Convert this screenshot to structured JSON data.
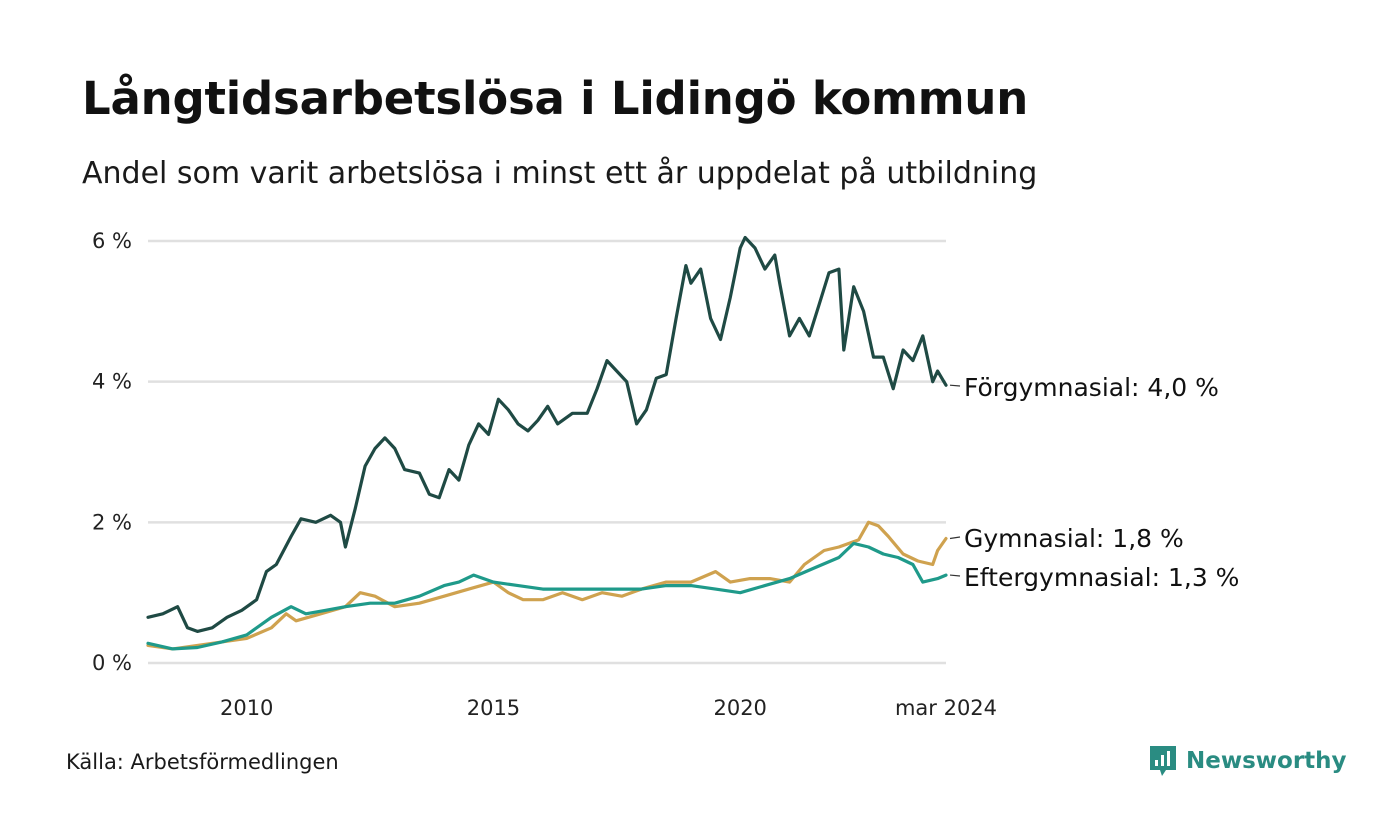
{
  "title": "Långtidsarbetslösa i Lidingö kommun",
  "subtitle": "Andel som varit arbetslösa i minst ett år uppdelat på utbildning",
  "source": "Källa: Arbetsförmedlingen",
  "brand": {
    "name": "Newsworthy",
    "color": "#2a8c82",
    "icon": "newsworthy-logo-icon"
  },
  "chart_data": {
    "type": "line",
    "title": "Långtidsarbetslösa i Lidingö kommun",
    "xlabel": "",
    "ylabel": "",
    "ylim": [
      0,
      6
    ],
    "xlim": [
      2008.0,
      2024.17
    ],
    "grid": "horizontal",
    "yticks": [
      {
        "value": 0,
        "label": "0 %"
      },
      {
        "value": 2,
        "label": "2 %"
      },
      {
        "value": 4,
        "label": "4 %"
      },
      {
        "value": 6,
        "label": "6 %"
      }
    ],
    "xticks": [
      {
        "value": 2010,
        "label": "2010"
      },
      {
        "value": 2015,
        "label": "2015"
      },
      {
        "value": 2020,
        "label": "2020"
      },
      {
        "value": 2024.17,
        "label": "mar 2024"
      }
    ],
    "series": [
      {
        "name": "Förgymnasial",
        "end_label": "Förgymnasial: 4,0 %",
        "color": "#1f4a44",
        "points": [
          [
            2008.0,
            0.65
          ],
          [
            2008.3,
            0.7
          ],
          [
            2008.6,
            0.8
          ],
          [
            2008.8,
            0.5
          ],
          [
            2009.0,
            0.45
          ],
          [
            2009.3,
            0.5
          ],
          [
            2009.6,
            0.65
          ],
          [
            2009.9,
            0.75
          ],
          [
            2010.2,
            0.9
          ],
          [
            2010.4,
            1.3
          ],
          [
            2010.6,
            1.4
          ],
          [
            2010.9,
            1.8
          ],
          [
            2011.1,
            2.05
          ],
          [
            2011.4,
            2.0
          ],
          [
            2011.7,
            2.1
          ],
          [
            2011.9,
            2.0
          ],
          [
            2012.0,
            1.65
          ],
          [
            2012.2,
            2.2
          ],
          [
            2012.4,
            2.8
          ],
          [
            2012.6,
            3.05
          ],
          [
            2012.8,
            3.2
          ],
          [
            2013.0,
            3.05
          ],
          [
            2013.2,
            2.75
          ],
          [
            2013.5,
            2.7
          ],
          [
            2013.7,
            2.4
          ],
          [
            2013.9,
            2.35
          ],
          [
            2014.1,
            2.75
          ],
          [
            2014.3,
            2.6
          ],
          [
            2014.5,
            3.1
          ],
          [
            2014.7,
            3.4
          ],
          [
            2014.9,
            3.25
          ],
          [
            2015.1,
            3.75
          ],
          [
            2015.3,
            3.6
          ],
          [
            2015.5,
            3.4
          ],
          [
            2015.7,
            3.3
          ],
          [
            2015.9,
            3.45
          ],
          [
            2016.1,
            3.65
          ],
          [
            2016.3,
            3.4
          ],
          [
            2016.6,
            3.55
          ],
          [
            2016.9,
            3.55
          ],
          [
            2017.1,
            3.9
          ],
          [
            2017.3,
            4.3
          ],
          [
            2017.5,
            4.15
          ],
          [
            2017.7,
            4.0
          ],
          [
            2017.9,
            3.4
          ],
          [
            2018.1,
            3.6
          ],
          [
            2018.3,
            4.05
          ],
          [
            2018.5,
            4.1
          ],
          [
            2018.7,
            4.9
          ],
          [
            2018.9,
            5.65
          ],
          [
            2019.0,
            5.4
          ],
          [
            2019.2,
            5.6
          ],
          [
            2019.4,
            4.9
          ],
          [
            2019.6,
            4.6
          ],
          [
            2019.8,
            5.2
          ],
          [
            2020.0,
            5.9
          ],
          [
            2020.1,
            6.05
          ],
          [
            2020.3,
            5.9
          ],
          [
            2020.5,
            5.6
          ],
          [
            2020.7,
            5.8
          ],
          [
            2020.8,
            5.4
          ],
          [
            2021.0,
            4.65
          ],
          [
            2021.2,
            4.9
          ],
          [
            2021.4,
            4.65
          ],
          [
            2021.6,
            5.1
          ],
          [
            2021.8,
            5.55
          ],
          [
            2022.0,
            5.6
          ],
          [
            2022.1,
            4.45
          ],
          [
            2022.3,
            5.35
          ],
          [
            2022.5,
            5.0
          ],
          [
            2022.7,
            4.35
          ],
          [
            2022.9,
            4.35
          ],
          [
            2023.1,
            3.9
          ],
          [
            2023.3,
            4.45
          ],
          [
            2023.5,
            4.3
          ],
          [
            2023.7,
            4.65
          ],
          [
            2023.9,
            4.0
          ],
          [
            2024.0,
            4.15
          ],
          [
            2024.17,
            3.95
          ]
        ]
      },
      {
        "name": "Gymnasial",
        "end_label": "Gymnasial: 1,8 %",
        "color": "#cfa24f",
        "points": [
          [
            2008.0,
            0.25
          ],
          [
            2008.5,
            0.2
          ],
          [
            2009.0,
            0.25
          ],
          [
            2009.5,
            0.3
          ],
          [
            2010.0,
            0.35
          ],
          [
            2010.5,
            0.5
          ],
          [
            2010.8,
            0.7
          ],
          [
            2011.0,
            0.6
          ],
          [
            2011.5,
            0.7
          ],
          [
            2012.0,
            0.8
          ],
          [
            2012.3,
            1.0
          ],
          [
            2012.6,
            0.95
          ],
          [
            2013.0,
            0.8
          ],
          [
            2013.5,
            0.85
          ],
          [
            2014.0,
            0.95
          ],
          [
            2014.5,
            1.05
          ],
          [
            2015.0,
            1.15
          ],
          [
            2015.3,
            1.0
          ],
          [
            2015.6,
            0.9
          ],
          [
            2016.0,
            0.9
          ],
          [
            2016.4,
            1.0
          ],
          [
            2016.8,
            0.9
          ],
          [
            2017.2,
            1.0
          ],
          [
            2017.6,
            0.95
          ],
          [
            2018.0,
            1.05
          ],
          [
            2018.5,
            1.15
          ],
          [
            2019.0,
            1.15
          ],
          [
            2019.5,
            1.3
          ],
          [
            2019.8,
            1.15
          ],
          [
            2020.2,
            1.2
          ],
          [
            2020.6,
            1.2
          ],
          [
            2021.0,
            1.15
          ],
          [
            2021.3,
            1.4
          ],
          [
            2021.7,
            1.6
          ],
          [
            2022.0,
            1.65
          ],
          [
            2022.4,
            1.75
          ],
          [
            2022.6,
            2.0
          ],
          [
            2022.8,
            1.95
          ],
          [
            2023.0,
            1.8
          ],
          [
            2023.3,
            1.55
          ],
          [
            2023.6,
            1.45
          ],
          [
            2023.9,
            1.4
          ],
          [
            2024.0,
            1.6
          ],
          [
            2024.17,
            1.77
          ]
        ]
      },
      {
        "name": "Eftergymnasial",
        "end_label": "Eftergymnasial: 1,3 %",
        "color": "#1f9a8a",
        "points": [
          [
            2008.0,
            0.28
          ],
          [
            2008.5,
            0.2
          ],
          [
            2009.0,
            0.22
          ],
          [
            2009.5,
            0.3
          ],
          [
            2010.0,
            0.4
          ],
          [
            2010.5,
            0.65
          ],
          [
            2010.9,
            0.8
          ],
          [
            2011.2,
            0.7
          ],
          [
            2011.6,
            0.75
          ],
          [
            2012.0,
            0.8
          ],
          [
            2012.5,
            0.85
          ],
          [
            2013.0,
            0.85
          ],
          [
            2013.5,
            0.95
          ],
          [
            2014.0,
            1.1
          ],
          [
            2014.3,
            1.15
          ],
          [
            2014.6,
            1.25
          ],
          [
            2015.0,
            1.15
          ],
          [
            2015.5,
            1.1
          ],
          [
            2016.0,
            1.05
          ],
          [
            2016.5,
            1.05
          ],
          [
            2017.0,
            1.05
          ],
          [
            2017.5,
            1.05
          ],
          [
            2018.0,
            1.05
          ],
          [
            2018.5,
            1.1
          ],
          [
            2019.0,
            1.1
          ],
          [
            2019.5,
            1.05
          ],
          [
            2020.0,
            1.0
          ],
          [
            2020.5,
            1.1
          ],
          [
            2021.0,
            1.2
          ],
          [
            2021.5,
            1.35
          ],
          [
            2022.0,
            1.5
          ],
          [
            2022.3,
            1.7
          ],
          [
            2022.6,
            1.65
          ],
          [
            2022.9,
            1.55
          ],
          [
            2023.2,
            1.5
          ],
          [
            2023.5,
            1.4
          ],
          [
            2023.7,
            1.15
          ],
          [
            2024.0,
            1.2
          ],
          [
            2024.17,
            1.25
          ]
        ]
      }
    ]
  }
}
